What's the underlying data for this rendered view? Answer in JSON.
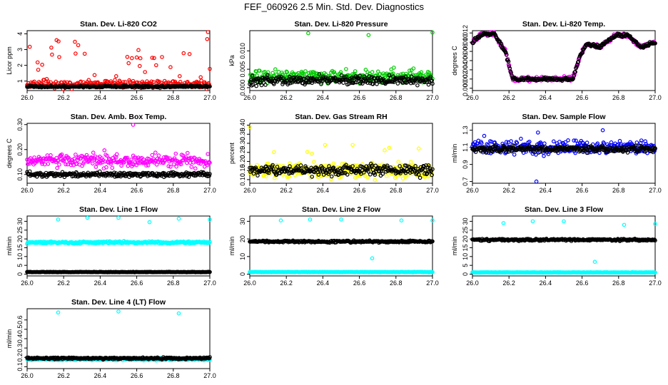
{
  "figure_title": "FEF_060926  2.5 Min. Std. Dev. Diagnostics",
  "colors": {
    "red": "#ff0000",
    "green": "#00cc00",
    "magenta": "#ff00ff",
    "yellow": "#ffff00",
    "blue": "#0000ff",
    "cyan": "#00ffff",
    "black": "#000000"
  },
  "chart_data": [
    {
      "id": "co2",
      "type": "scatter",
      "title": "Stan. Dev. Li-820 CO2",
      "ylabel": "Licor ppm",
      "xlim": [
        26.0,
        27.0
      ],
      "ylim": [
        0.4,
        4.2
      ],
      "xticks": [
        "26.0",
        "26.2",
        "26.4",
        "26.6",
        "26.8",
        "27.0"
      ],
      "yticks": [
        1,
        2,
        3,
        4
      ],
      "ytick_labels": [
        "1",
        "2",
        "3",
        "4"
      ],
      "series": [
        {
          "name": "primary",
          "color": "red",
          "base": 0.8,
          "noise": 0.35,
          "spike_prob": 0.12,
          "spike_max": 3.0,
          "seed": 11
        },
        {
          "name": "secondary",
          "color": "black",
          "base": 0.65,
          "noise": 0.08,
          "spike_prob": 0,
          "spike_max": 0,
          "seed": 12
        }
      ],
      "extra_points": [
        [
          26.99,
          4.2
        ],
        [
          26.6,
          2.5
        ],
        [
          26.62,
          2.45
        ]
      ]
    },
    {
      "id": "pressure",
      "type": "scatter",
      "title": "Stan. Dev. Li-820 Pressure",
      "ylabel": "kPa",
      "xlim": [
        26.0,
        27.0
      ],
      "ylim": [
        -0.0008,
        0.0155
      ],
      "xticks": [
        "26.0",
        "26.2",
        "26.4",
        "26.6",
        "26.8",
        "27.0"
      ],
      "yticks": [
        0.0,
        0.005,
        0.01
      ],
      "ytick_labels": [
        "0.000",
        "0.005",
        "0.010"
      ],
      "series": [
        {
          "name": "primary",
          "color": "green",
          "base": 0.003,
          "noise": 0.0025,
          "spike_prob": 0.02,
          "spike_max": 0.004,
          "seed": 21
        },
        {
          "name": "secondary",
          "color": "black",
          "base": 0.002,
          "noise": 0.0018,
          "spike_prob": 0,
          "spike_max": 0,
          "seed": 22
        }
      ],
      "extra_points": [
        [
          26.32,
          0.0148
        ],
        [
          26.65,
          0.0143
        ],
        [
          27.0,
          0.015
        ]
      ]
    },
    {
      "id": "temp",
      "type": "scatter",
      "title": "Stan. Dev. Li-820 Temp.",
      "ylabel": "degrees C",
      "xlim": [
        26.0,
        27.0
      ],
      "ylim": [
        -0.0005,
        0.0125
      ],
      "xticks": [
        "26.0",
        "26.2",
        "26.4",
        "26.6",
        "26.8",
        "27.0"
      ],
      "yticks": [
        0.0,
        0.002,
        0.004,
        0.006,
        0.008,
        0.01,
        0.012
      ],
      "ytick_labels": [
        "0.000",
        "0.002",
        "0.004",
        "0.006",
        "0.008",
        "0.010",
        "0.012"
      ],
      "profile": [
        [
          26.0,
          0.01
        ],
        [
          26.05,
          0.0118
        ],
        [
          26.12,
          0.0118
        ],
        [
          26.18,
          0.008
        ],
        [
          26.22,
          0.002
        ],
        [
          26.3,
          0.002
        ],
        [
          26.5,
          0.002
        ],
        [
          26.55,
          0.002
        ],
        [
          26.58,
          0.006
        ],
        [
          26.62,
          0.0095
        ],
        [
          26.7,
          0.009
        ],
        [
          26.78,
          0.0115
        ],
        [
          26.85,
          0.0115
        ],
        [
          26.92,
          0.009
        ],
        [
          27.0,
          0.01
        ]
      ],
      "series": [
        {
          "name": "primary",
          "color": "magenta",
          "base": 0,
          "noise": 0.0007,
          "spike_prob": 0,
          "spike_max": 0,
          "seed": 31
        },
        {
          "name": "secondary",
          "color": "black",
          "base": 0,
          "noise": 0.0005,
          "spike_prob": 0,
          "spike_max": 0,
          "seed": 32
        }
      ],
      "extra_points": []
    },
    {
      "id": "ambbox",
      "type": "scatter",
      "title": "Stan. Dev. Amb. Box Temp.",
      "ylabel": "degrees C",
      "xlim": [
        26.0,
        27.0
      ],
      "ylim": [
        0.065,
        0.305
      ],
      "xticks": [
        "26.0",
        "26.2",
        "26.4",
        "26.6",
        "26.8",
        "27.0"
      ],
      "yticks": [
        0.1,
        0.2,
        0.3
      ],
      "ytick_labels": [
        "0.10",
        "0.20",
        "0.30"
      ],
      "series": [
        {
          "name": "primary",
          "color": "magenta",
          "base": 0.155,
          "noise": 0.035,
          "spike_prob": 0.03,
          "spike_max": 0.05,
          "seed": 41
        },
        {
          "name": "secondary",
          "color": "black",
          "base": 0.1,
          "noise": 0.014,
          "spike_prob": 0,
          "spike_max": 0,
          "seed": 42
        }
      ],
      "extra_points": [
        [
          26.58,
          0.3
        ]
      ]
    },
    {
      "id": "rh",
      "type": "scatter",
      "title": "Stan. Dev. Gas Stream RH",
      "ylabel": "percent",
      "xlim": [
        26.0,
        27.0
      ],
      "ylim": [
        0.08,
        0.41
      ],
      "xticks": [
        "26.0",
        "26.2",
        "26.4",
        "26.6",
        "26.8",
        "27.0"
      ],
      "yticks": [
        0.1,
        0.15,
        0.2,
        0.25,
        0.3,
        0.35,
        0.4
      ],
      "ytick_labels": [
        "0.10",
        "0.15",
        "0.20",
        "0.25",
        "0.30",
        "0.35",
        "0.40"
      ],
      "series": [
        {
          "name": "primary",
          "color": "yellow",
          "base": 0.15,
          "noise": 0.06,
          "spike_prob": 0.05,
          "spike_max": 0.15,
          "seed": 51
        },
        {
          "name": "secondary",
          "color": "black",
          "base": 0.15,
          "noise": 0.045,
          "spike_prob": 0,
          "spike_max": 0,
          "seed": 52
        }
      ],
      "extra_points": [
        [
          26.0,
          0.39
        ]
      ]
    },
    {
      "id": "sampleflow",
      "type": "scatter",
      "title": "Stan. Dev. Sample Flow",
      "ylabel": "ml/min",
      "xlim": [
        26.0,
        27.0
      ],
      "ylim": [
        0.68,
        1.38
      ],
      "xticks": [
        "26.0",
        "26.2",
        "26.4",
        "26.6",
        "26.8",
        "27.0"
      ],
      "yticks": [
        0.7,
        0.9,
        1.1,
        1.3
      ],
      "ytick_labels": [
        "0.7",
        "0.9",
        "1.1",
        "1.3"
      ],
      "series": [
        {
          "name": "primary",
          "color": "blue",
          "base": 1.1,
          "noise": 0.12,
          "spike_prob": 0.04,
          "spike_max": 0.25,
          "seed": 61
        },
        {
          "name": "secondary",
          "color": "black",
          "base": 1.08,
          "noise": 0.05,
          "spike_prob": 0,
          "spike_max": 0,
          "seed": 62
        }
      ],
      "extra_points": [
        [
          26.35,
          0.7
        ]
      ]
    },
    {
      "id": "line1",
      "type": "scatter",
      "title": "Stan. Dev. Line 1 Flow",
      "ylabel": "ml/min",
      "xlim": [
        26.0,
        27.0
      ],
      "ylim": [
        -1,
        33
      ],
      "xticks": [
        "26.0",
        "26.2",
        "26.4",
        "26.6",
        "26.8",
        "27.0"
      ],
      "yticks": [
        0,
        5,
        10,
        15,
        20,
        25,
        30
      ],
      "ytick_labels": [
        "0",
        "5",
        "10",
        "15",
        "20",
        "25",
        "30"
      ],
      "series": [
        {
          "name": "primary",
          "color": "cyan",
          "base": 18,
          "noise": 0.9,
          "spike_prob": 0,
          "spike_max": 0,
          "seed": 71
        },
        {
          "name": "secondary",
          "color": "black",
          "base": 1.2,
          "noise": 0.2,
          "spike_prob": 0,
          "spike_max": 0,
          "seed": 72
        }
      ],
      "extra_points": [
        [
          26.17,
          31
        ],
        [
          26.33,
          32
        ],
        [
          26.5,
          32
        ],
        [
          26.67,
          29.5
        ],
        [
          26.83,
          31.5
        ],
        [
          27.0,
          31
        ]
      ]
    },
    {
      "id": "line2",
      "type": "scatter",
      "title": "Stan. Dev. Line 2 Flow",
      "ylabel": "ml/min",
      "xlim": [
        26.0,
        27.0
      ],
      "ylim": [
        -1,
        33
      ],
      "xticks": [
        "26.0",
        "26.2",
        "26.4",
        "26.6",
        "26.8",
        "27.0"
      ],
      "yticks": [
        0,
        10,
        20,
        30
      ],
      "ytick_labels": [
        "0",
        "10",
        "20",
        "30"
      ],
      "series": [
        {
          "name": "primary",
          "color": "cyan",
          "base": 1.2,
          "noise": 0.2,
          "spike_prob": 0,
          "spike_max": 0,
          "seed": 81
        },
        {
          "name": "secondary",
          "color": "black",
          "base": 18.5,
          "noise": 0.8,
          "spike_prob": 0,
          "spike_max": 0,
          "seed": 82
        }
      ],
      "extra_points": [
        [
          26.17,
          30.5
        ],
        [
          26.33,
          31
        ],
        [
          26.5,
          31
        ],
        [
          26.67,
          9
        ],
        [
          26.83,
          30.5
        ],
        [
          27.0,
          30.5
        ]
      ]
    },
    {
      "id": "line3",
      "type": "scatter",
      "title": "Stan. Dev. Line 3 Flow",
      "ylabel": "ml/min",
      "xlim": [
        26.0,
        27.0
      ],
      "ylim": [
        -1,
        33
      ],
      "xticks": [
        "26.0",
        "26.2",
        "26.4",
        "26.6",
        "26.8",
        "27.0"
      ],
      "yticks": [
        0,
        5,
        10,
        15,
        20,
        25,
        30
      ],
      "ytick_labels": [
        "0",
        "5",
        "10",
        "15",
        "20",
        "25",
        "30"
      ],
      "series": [
        {
          "name": "primary",
          "color": "cyan",
          "base": 1.0,
          "noise": 0.15,
          "spike_prob": 0,
          "spike_max": 0,
          "seed": 91
        },
        {
          "name": "secondary",
          "color": "black",
          "base": 19.5,
          "noise": 0.8,
          "spike_prob": 0,
          "spike_max": 0,
          "seed": 92
        }
      ],
      "extra_points": [
        [
          26.17,
          29
        ],
        [
          26.33,
          30
        ],
        [
          26.5,
          30
        ],
        [
          26.67,
          7
        ],
        [
          26.83,
          28
        ],
        [
          27.0,
          28.5
        ]
      ]
    },
    {
      "id": "line4",
      "type": "scatter",
      "title": "Stan. Dev. Line 4 (LT) Flow",
      "ylabel": "ml/min",
      "xlim": [
        26.0,
        27.0
      ],
      "ylim": [
        0.08,
        0.72
      ],
      "xticks": [
        "26.0",
        "26.2",
        "26.4",
        "26.6",
        "26.8",
        "27.0"
      ],
      "yticks": [
        0.1,
        0.2,
        0.3,
        0.4,
        0.5,
        0.6
      ],
      "ytick_labels": [
        "0.1",
        "0.2",
        "0.3",
        "0.4",
        "0.5",
        "0.6"
      ],
      "series": [
        {
          "name": "primary",
          "color": "cyan",
          "base": 0.18,
          "noise": 0.015,
          "spike_prob": 0,
          "spike_max": 0,
          "seed": 101
        },
        {
          "name": "secondary",
          "color": "black",
          "base": 0.19,
          "noise": 0.015,
          "spike_prob": 0,
          "spike_max": 0,
          "seed": 102
        }
      ],
      "extra_points": [
        [
          26.17,
          0.68
        ],
        [
          26.5,
          0.69
        ],
        [
          26.83,
          0.67
        ]
      ]
    }
  ]
}
